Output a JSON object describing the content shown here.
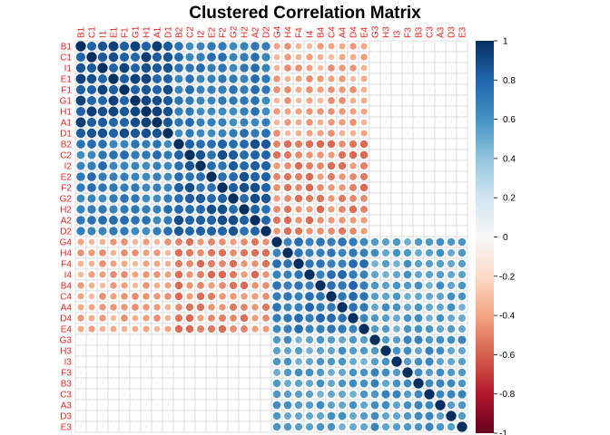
{
  "chart_data": {
    "type": "heatmap",
    "title": "Clustered Correlation Matrix",
    "style": "circle",
    "variables": [
      "B1",
      "C1",
      "I1",
      "E1",
      "F1",
      "G1",
      "H1",
      "A1",
      "D1",
      "B2",
      "C2",
      "I2",
      "E2",
      "F2",
      "G2",
      "H2",
      "A2",
      "D2",
      "G4",
      "H4",
      "F4",
      "I4",
      "B4",
      "C4",
      "A4",
      "D4",
      "E4",
      "G3",
      "H3",
      "I3",
      "F3",
      "B3",
      "C3",
      "A3",
      "D3",
      "E3"
    ],
    "clusters": [
      {
        "members": [
          "B1",
          "C1",
          "I1",
          "E1",
          "F1",
          "G1",
          "H1",
          "A1",
          "D1"
        ]
      },
      {
        "members": [
          "B2",
          "C2",
          "I2",
          "E2",
          "F2",
          "G2",
          "H2",
          "A2",
          "D2"
        ]
      },
      {
        "members": [
          "G4",
          "H4",
          "F4",
          "I4",
          "B4",
          "C4",
          "A4",
          "D4",
          "E4"
        ]
      },
      {
        "members": [
          "G3",
          "H3",
          "I3",
          "F3",
          "B3",
          "C3",
          "A3",
          "D3",
          "E3"
        ]
      }
    ],
    "approx_correlations": {
      "diagonal": 1.0,
      "within_cluster_1": 0.88,
      "within_cluster_2": 0.82,
      "within_cluster_3": 0.72,
      "within_cluster_4": 0.6,
      "cluster_1_vs_2": 0.7,
      "cluster_1_vs_3": -0.4,
      "cluster_2_vs_3": -0.5,
      "cluster_3_vs_4": 0.55,
      "cluster_1_vs_4": 0.03,
      "cluster_2_vs_4": 0.0
    },
    "colorbar": {
      "range": [
        -1,
        1
      ],
      "ticks": [
        "1",
        "0.8",
        "0.6",
        "0.4",
        "0.2",
        "0",
        "-0.2",
        "-0.4",
        "-0.6",
        "-0.8",
        "-1"
      ]
    },
    "colors": {
      "label": "#e8211c",
      "grid": "#cfcfcf",
      "neg_strong": "#67001f",
      "neg_mid": "#d6604d",
      "neg_weak": "#f4a582",
      "neutral": "#f7f7f7",
      "pos_weak": "#92c5de",
      "pos_mid": "#4393c3",
      "pos_strong": "#053061"
    }
  }
}
